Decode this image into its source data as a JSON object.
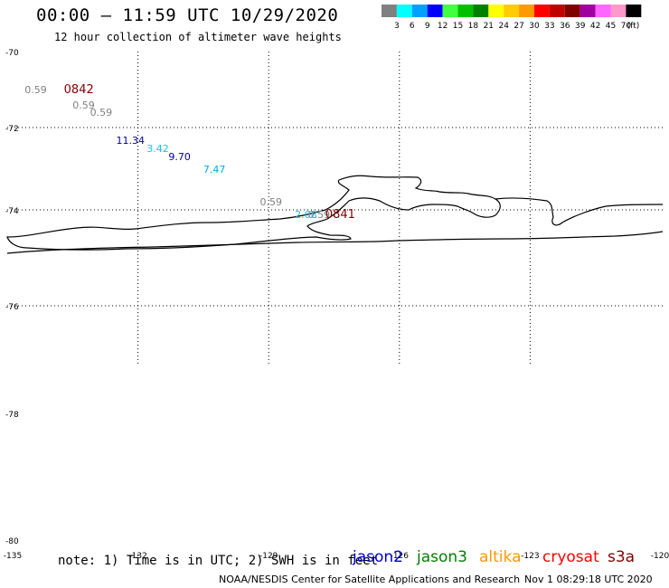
{
  "header": {
    "title": "00:00 – 11:59 UTC 10/29/2020",
    "subtitle": "12 hour collection of altimeter wave heights"
  },
  "legend": {
    "unit": "(ft)",
    "bins": [
      {
        "label": "3",
        "color": "#808080"
      },
      {
        "label": "6",
        "color": "#00ffff"
      },
      {
        "label": "9",
        "color": "#00a0ff"
      },
      {
        "label": "12",
        "color": "#0000ff"
      },
      {
        "label": "15",
        "color": "#40ff40"
      },
      {
        "label": "18",
        "color": "#00c000"
      },
      {
        "label": "21",
        "color": "#008000"
      },
      {
        "label": "24",
        "color": "#ffff00"
      },
      {
        "label": "27",
        "color": "#ffcc00"
      },
      {
        "label": "30",
        "color": "#ff9900"
      },
      {
        "label": "33",
        "color": "#ff0000"
      },
      {
        "label": "36",
        "color": "#c00000"
      },
      {
        "label": "39",
        "color": "#800000"
      },
      {
        "label": "42",
        "color": "#a000a0"
      },
      {
        "label": "45",
        "color": "#ff66ff"
      },
      {
        "label": "70",
        "color": "#ff99cc"
      },
      {
        "label": "",
        "color": "#000000"
      }
    ]
  },
  "axes": {
    "lat_labels": [
      "-70",
      "-72",
      "-74",
      "-76",
      "-78",
      "-80"
    ],
    "lon_labels": [
      "-135",
      "-132",
      "-129",
      "-126",
      "-123",
      "-120"
    ]
  },
  "observations": [
    {
      "lat": -71.0,
      "lon": -134.6,
      "value": "0.59",
      "color": "#808080"
    },
    {
      "lat": -71.0,
      "lon": -133.7,
      "value": "0842",
      "color": "#800000",
      "kind": "time"
    },
    {
      "lat": -71.4,
      "lon": -133.5,
      "value": "0.59",
      "color": "#808080"
    },
    {
      "lat": -71.6,
      "lon": -133.1,
      "value": "0.59",
      "color": "#808080"
    },
    {
      "lat": -72.3,
      "lon": -132.5,
      "value": "11.34",
      "color": "#0000aa"
    },
    {
      "lat": -72.5,
      "lon": -131.8,
      "value": "3.42",
      "color": "#00ccff"
    },
    {
      "lat": -72.7,
      "lon": -131.3,
      "value": "9.70",
      "color": "#0000aa"
    },
    {
      "lat": -73.0,
      "lon": -130.5,
      "value": "7.47",
      "color": "#00aadd"
    },
    {
      "lat": -73.8,
      "lon": -129.2,
      "value": "0.59",
      "color": "#808080"
    },
    {
      "lat": -74.1,
      "lon": -128.4,
      "value": "2.08",
      "color": "#00ccff"
    },
    {
      "lat": -74.1,
      "lon": -128.1,
      "value": "0.59",
      "color": "#808080"
    },
    {
      "lat": -74.1,
      "lon": -127.7,
      "value": "0841",
      "color": "#800000",
      "kind": "time"
    }
  ],
  "footer": {
    "note": "note: 1) Time is in UTC; 2) SWH is in feet",
    "satellites": [
      {
        "name": "jason2",
        "color": "#0000cc"
      },
      {
        "name": "jason3",
        "color": "#008000"
      },
      {
        "name": "altika",
        "color": "#ff9900"
      },
      {
        "name": "cryosat",
        "color": "#ff0000"
      },
      {
        "name": "s3a",
        "color": "#800000"
      }
    ],
    "credit": "NOAA/NESDIS Center for Satellite Applications and Research",
    "timestamp": "Nov  1 08:29:18 UTC 2020"
  }
}
